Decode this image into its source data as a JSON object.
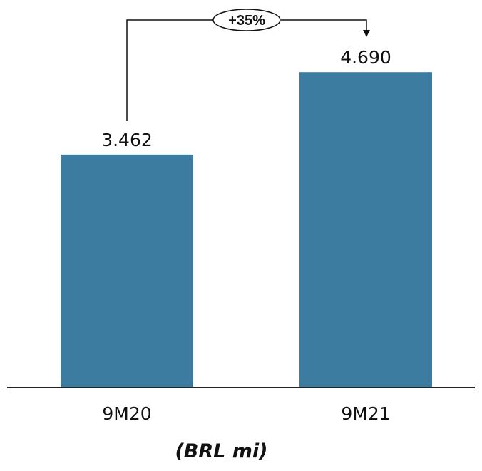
{
  "chart_data": {
    "type": "bar",
    "categories": [
      "9M20",
      "9M21"
    ],
    "values": [
      3462,
      4690
    ],
    "value_labels": [
      "3.462",
      "4.690"
    ],
    "unit": "(BRL mi)",
    "growth_annotation": "+35%",
    "colors": {
      "bar": "#3b7ca0"
    },
    "legend": "none",
    "grid": false
  }
}
